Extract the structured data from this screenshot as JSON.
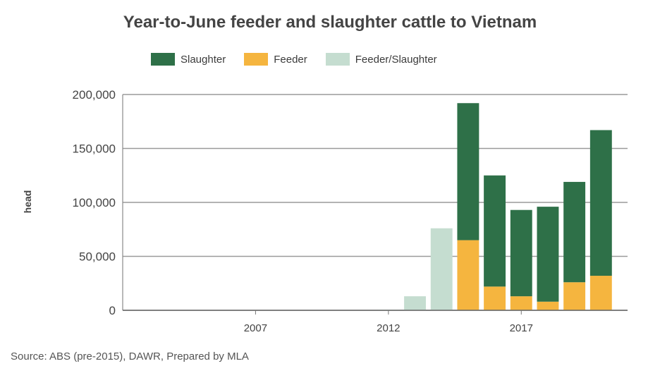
{
  "chart_data": {
    "type": "bar",
    "stacked": true,
    "title": "Year-to-June feeder and slaughter cattle to Vietnam",
    "ylabel": "head",
    "ylim": [
      0,
      200000
    ],
    "yticks": [
      "0",
      "50,000",
      "100,000",
      "150,000",
      "200,000"
    ],
    "x_axis_range": [
      2002,
      2021
    ],
    "xticks": [
      {
        "year": 2007,
        "label": "2007"
      },
      {
        "year": 2012,
        "label": "2012"
      },
      {
        "year": 2017,
        "label": "2017"
      }
    ],
    "x": [
      2003,
      2004,
      2005,
      2006,
      2007,
      2008,
      2009,
      2010,
      2011,
      2012,
      2013,
      2014,
      2015,
      2016,
      2017,
      2018,
      2019,
      2020
    ],
    "series": [
      {
        "name": "Slaughter",
        "color": "#2e7048",
        "values": [
          0,
          0,
          0,
          0,
          0,
          0,
          0,
          0,
          0,
          0,
          0,
          0,
          127000,
          103000,
          80000,
          88000,
          93000,
          135000
        ]
      },
      {
        "name": "Feeder",
        "color": "#f5b53f",
        "values": [
          0,
          0,
          0,
          0,
          0,
          0,
          0,
          0,
          0,
          0,
          0,
          0,
          65000,
          22000,
          13000,
          8000,
          26000,
          32000
        ]
      },
      {
        "name": "Feeder/Slaughter",
        "color": "#c5ddd0",
        "values": [
          0,
          0,
          0,
          0,
          0,
          0,
          0,
          0,
          0,
          500,
          13000,
          76000,
          0,
          0,
          0,
          0,
          0,
          0
        ]
      }
    ],
    "grid": true,
    "legend_position": "top"
  },
  "source": "Source: ABS (pre-2015), DAWR, Prepared by MLA"
}
